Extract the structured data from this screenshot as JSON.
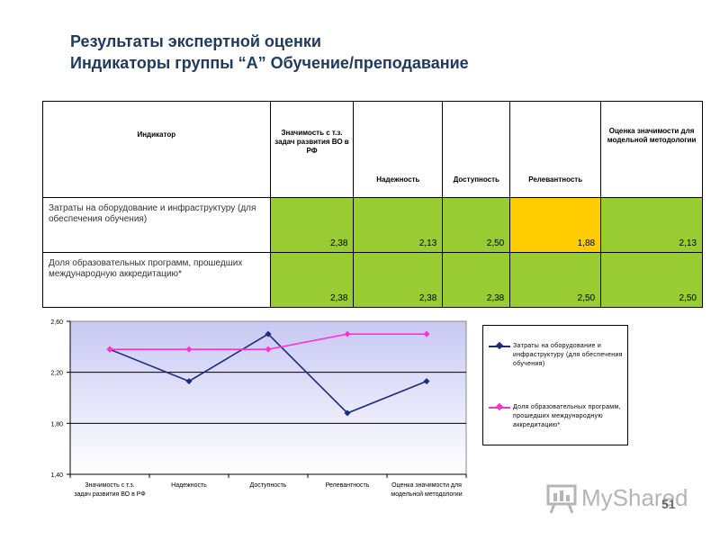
{
  "title": {
    "line1": "Результаты экспертной оценки",
    "line2": "Индикаторы группы “А” Обучение/преподавание"
  },
  "table": {
    "headers": [
      "Индикатор",
      "Значимость с т.з. задач развития ВО в РФ",
      "Надежность",
      "Доступность",
      "Релевантность",
      "Оценка значимости для модельной методологии"
    ],
    "rows": [
      {
        "name": "Затраты на оборудование и инфраструктуру (для обеспечения обучения)",
        "values": [
          "2,38",
          "2,13",
          "2,50",
          "1,88",
          "2,13"
        ],
        "colors": [
          "#99cc33",
          "#99cc33",
          "#99cc33",
          "#ffcc00",
          "#99cc33"
        ]
      },
      {
        "name": "Доля образовательных программ, прошедших международную аккредитацию*",
        "values": [
          "2,38",
          "2,38",
          "2,38",
          "2,50",
          "2,50"
        ],
        "colors": [
          "#99cc33",
          "#99cc33",
          "#99cc33",
          "#99cc33",
          "#99cc33"
        ]
      }
    ]
  },
  "chart_data": {
    "type": "line",
    "categories": [
      "Значимость с т.з. задач развития ВО в РФ",
      "Надежность",
      "Доступность",
      "Релевантность",
      "Оценка значимости для модельной методологии"
    ],
    "series": [
      {
        "name": "Затраты на оборудование и инфраструктуру (для обеспечения обучения)",
        "values": [
          2.38,
          2.13,
          2.5,
          1.88,
          2.13
        ],
        "color": "#1f2a7a",
        "marker": "diamond"
      },
      {
        "name": "Доля образовательных программ, прошедших международную аккредитацию*",
        "values": [
          2.38,
          2.38,
          2.38,
          2.5,
          2.5
        ],
        "color": "#ff33cc",
        "marker": "diamond"
      }
    ],
    "yticks": [
      "2,60",
      "2,20",
      "1,80",
      "1,40"
    ],
    "ylim": [
      1.4,
      2.6
    ],
    "grid": true,
    "legend_position": "right",
    "plot_background": "gradient lavender"
  },
  "watermark": {
    "text": "MyShared",
    "icon": "presentation-board-icon"
  },
  "page_number": "51"
}
